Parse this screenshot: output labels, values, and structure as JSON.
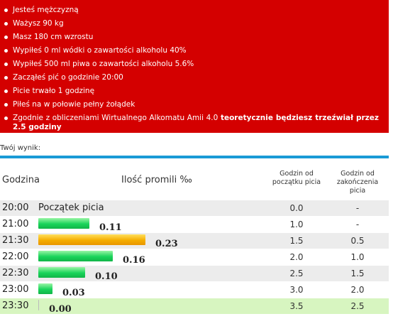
{
  "summary": {
    "items": [
      "Jesteś mężczyzną",
      "Ważysz 90 kg",
      "Masz 180 cm wzrostu",
      "Wypiłeś 0 ml wódki o zawartości alkoholu 40%",
      "Wypiłeś 500 ml piwa o zawartości alkoholu 5.6%",
      "Zacząłeś pić o godzinie 20:00",
      "Picie trwało 1 godzinę",
      "Piłeś na w połowie pełny żołądek"
    ],
    "conclusion_prefix": "Zgodnie z obliczeniami Wirtualnego Alkomatu Amii 4.0",
    "conclusion_bold": "teoretycznie będziesz trzeźwiał przez 2.5 godziny"
  },
  "result_label": "Twój wynik:",
  "table": {
    "headers": {
      "hour": "Godzina",
      "promil": "Ilość promili ‰",
      "since_start": "Godzin od początku picia",
      "since_end": "Godzin od zakończenia picia"
    },
    "rows": [
      {
        "hour": "20:00",
        "text": "Początek picia",
        "since_start": "0.0",
        "since_end": "-"
      },
      {
        "hour": "21:00",
        "value": 0.11,
        "label": "0.11",
        "color": "green",
        "since_start": "1.0",
        "since_end": "-"
      },
      {
        "hour": "21:30",
        "value": 0.23,
        "label": "0.23",
        "color": "orange",
        "since_start": "1.5",
        "since_end": "0.5"
      },
      {
        "hour": "22:00",
        "value": 0.16,
        "label": "0.16",
        "color": "green",
        "since_start": "2.0",
        "since_end": "1.0"
      },
      {
        "hour": "22:30",
        "value": 0.1,
        "label": "0.10",
        "color": "green",
        "since_start": "2.5",
        "since_end": "1.5"
      },
      {
        "hour": "23:00",
        "value": 0.03,
        "label": "0.03",
        "color": "green",
        "since_start": "3.0",
        "since_end": "2.0"
      },
      {
        "hour": "23:30",
        "value": 0.0,
        "label": "0.00",
        "color": "green",
        "since_start": "3.5",
        "since_end": "2.5"
      }
    ]
  },
  "colors": {
    "panel": "#d40000",
    "accent": "#1a9ad6",
    "bar_green": "#19d45a",
    "bar_orange": "#f5ad00",
    "highlight_row": "#d7f5c0"
  }
}
